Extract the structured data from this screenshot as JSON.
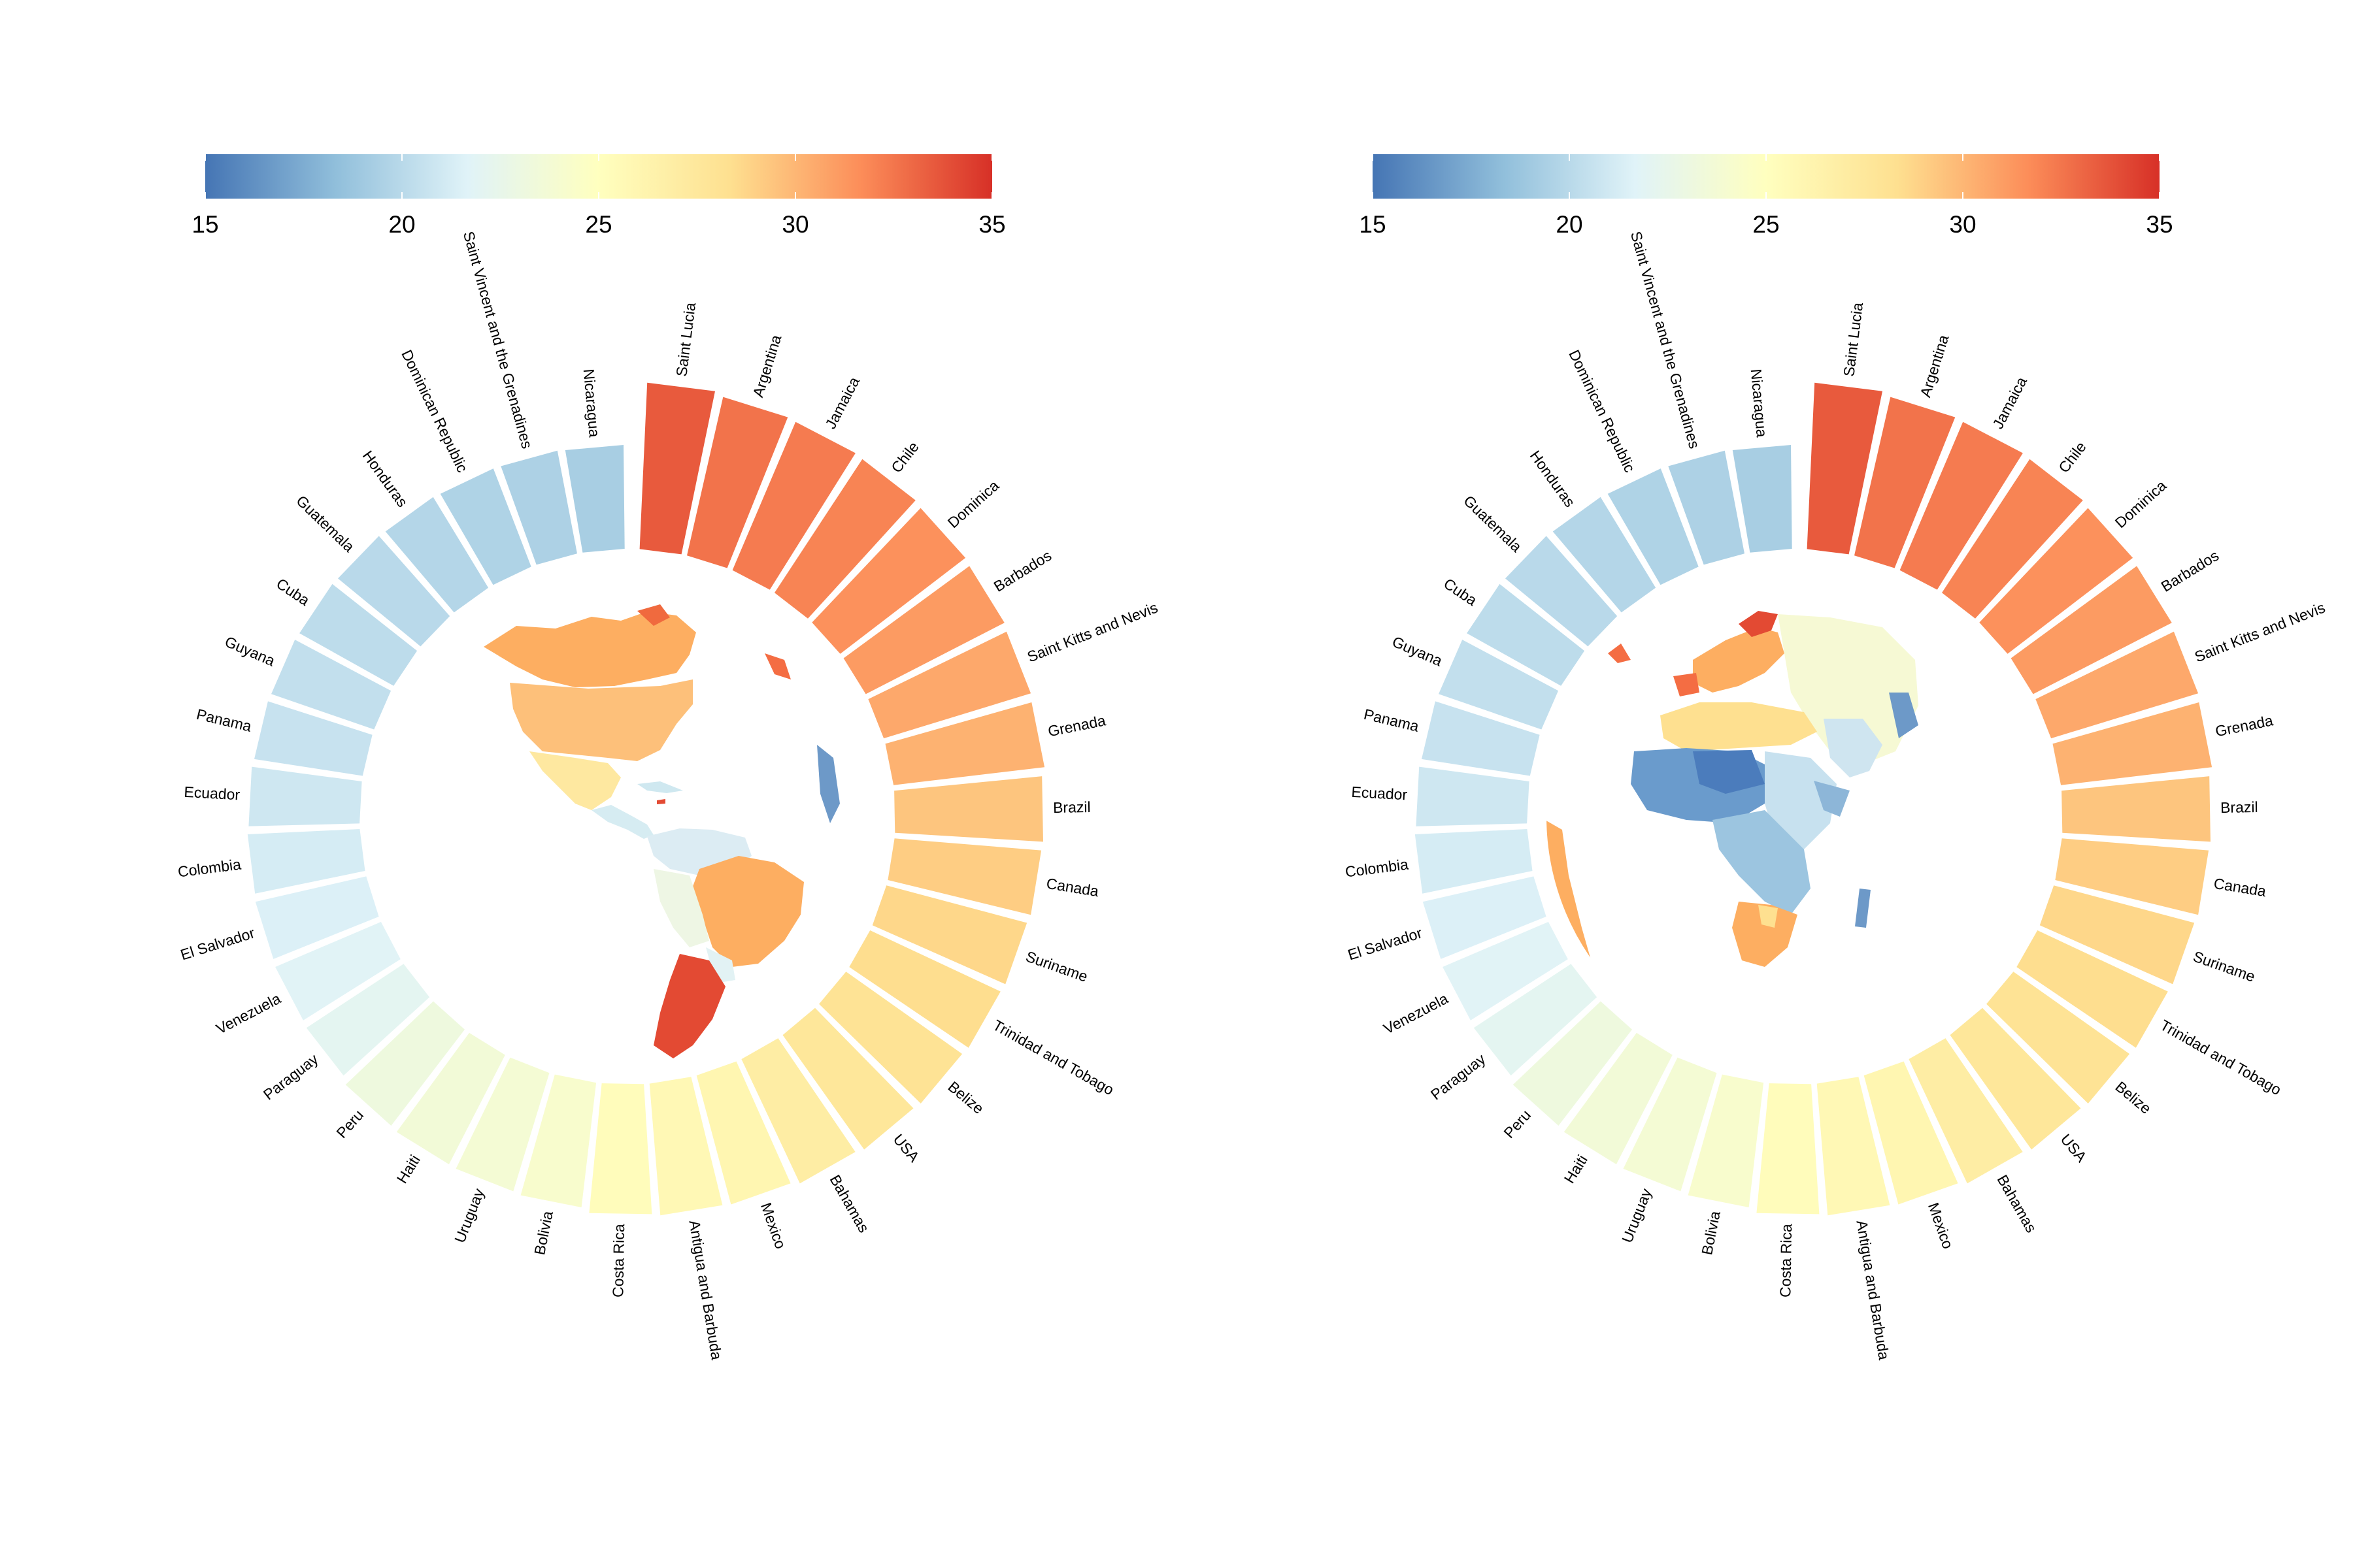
{
  "colors": {
    "scale": [
      "#4575b4",
      "#91bfdb",
      "#e0f3f8",
      "#ffffbf",
      "#fee090",
      "#fc8d59",
      "#d73027"
    ],
    "background": "#ffffff",
    "bar_gap": "#ffffff"
  },
  "colorbar": {
    "min": 15,
    "max": 35,
    "ticks": [
      "15",
      "20",
      "25",
      "30",
      "35"
    ]
  },
  "chart_data": [
    {
      "type": "bar",
      "layout": "circular",
      "inset": "americas-map",
      "categories": [
        "Saint Lucia",
        "Argentina",
        "Jamaica",
        "Chile",
        "Dominica",
        "Barbados",
        "Saint Kitts and Nevis",
        "Grenada",
        "Brazil",
        "Canada",
        "Suriname",
        "Trinidad and Tobago",
        "Belize",
        "USA",
        "Bahamas",
        "Mexico",
        "Antigua and Barbuda",
        "Costa Rica",
        "Bolivia",
        "Uruguay",
        "Haiti",
        "Peru",
        "Paraguay",
        "Venezuela",
        "El Salvador",
        "Colombia",
        "Ecuador",
        "Panama",
        "Guyana",
        "Cuba",
        "Guatemala",
        "Honduras",
        "Dominican Republic",
        "Saint Vincent and the Grenadines",
        "Nicaragua"
      ],
      "values": [
        33.5,
        32.6,
        32.3,
        32.0,
        31.5,
        31.1,
        30.6,
        30.2,
        29.4,
        29.1,
        28.7,
        28.4,
        28.0,
        27.6,
        26.9,
        26.0,
        25.7,
        25.3,
        24.2,
        23.8,
        23.6,
        23.2,
        22.1,
        21.8,
        21.5,
        21.2,
        20.9,
        20.6,
        20.4,
        20.2,
        20.0,
        19.8,
        19.6,
        19.5,
        19.3
      ],
      "scale_min": 15,
      "scale_max": 35
    },
    {
      "type": "bar",
      "layout": "circular",
      "inset": "africa-europe-map",
      "categories": [
        "Saint Lucia",
        "Argentina",
        "Jamaica",
        "Chile",
        "Dominica",
        "Barbados",
        "Saint Kitts and Nevis",
        "Grenada",
        "Brazil",
        "Canada",
        "Suriname",
        "Trinidad and Tobago",
        "Belize",
        "USA",
        "Bahamas",
        "Mexico",
        "Antigua and Barbuda",
        "Costa Rica",
        "Bolivia",
        "Uruguay",
        "Haiti",
        "Peru",
        "Paraguay",
        "Venezuela",
        "El Salvador",
        "Colombia",
        "Ecuador",
        "Panama",
        "Guyana",
        "Cuba",
        "Guatemala",
        "Honduras",
        "Dominican Republic",
        "Saint Vincent and the Grenadines",
        "Nicaragua"
      ],
      "values": [
        33.5,
        32.6,
        32.3,
        32.0,
        31.5,
        31.1,
        30.6,
        30.2,
        29.4,
        29.1,
        28.7,
        28.4,
        28.0,
        27.6,
        26.9,
        26.0,
        25.7,
        25.3,
        24.2,
        23.8,
        23.6,
        23.2,
        22.1,
        21.8,
        21.5,
        21.2,
        20.9,
        20.6,
        20.4,
        20.2,
        20.0,
        19.8,
        19.6,
        19.5,
        19.3
      ],
      "scale_min": 15,
      "scale_max": 35
    }
  ]
}
